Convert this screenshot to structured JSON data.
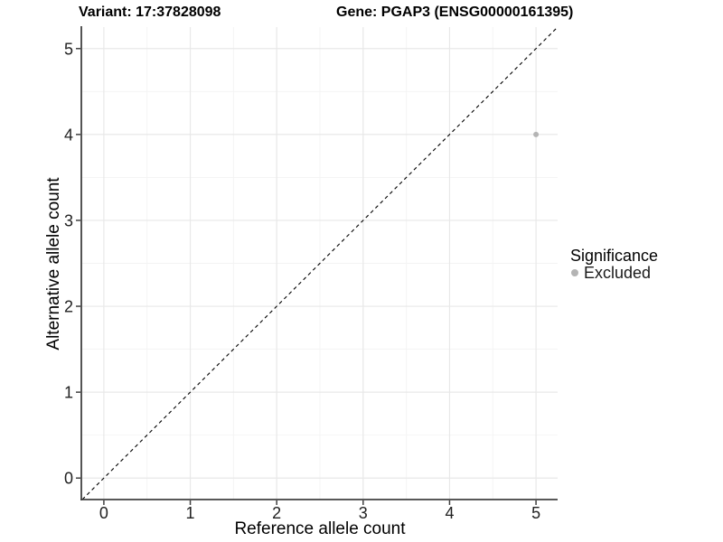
{
  "chart_data": {
    "type": "scatter",
    "title_left": "Variant: 17:37828098",
    "title_right": "Gene: PGAP3 (ENSG00000161395)",
    "xlabel": "Reference allele count",
    "ylabel": "Alternative allele count",
    "xlim": [
      -0.25,
      5.25
    ],
    "ylim": [
      -0.25,
      5.25
    ],
    "xticks": [
      0,
      1,
      2,
      3,
      4,
      5
    ],
    "yticks": [
      0,
      1,
      2,
      3,
      4,
      5
    ],
    "grid": {
      "major": true,
      "minor": true,
      "minor_step": 0.5
    },
    "reference_line": {
      "kind": "identity y=x",
      "slope": 1,
      "intercept": 0,
      "style": "dashed",
      "color": "#000000"
    },
    "series": [
      {
        "name": "Excluded",
        "marker": "circle",
        "color": "#b4b4b4",
        "points": [
          {
            "x": 5,
            "y": 4
          }
        ]
      }
    ],
    "legend": {
      "title": "Significance",
      "position": "right",
      "items": [
        {
          "label": "Excluded",
          "color": "#b4b4b4"
        }
      ]
    }
  },
  "style": {
    "background": "#ffffff",
    "grid_major_color": "#e8e8e8",
    "grid_minor_color": "#f3f3f3",
    "axis_line_color": "#404040",
    "tick_label_color": "#212121",
    "axis_title_color": "#000000",
    "plot_title_color": "#000000",
    "legend_text_color": "#1a1a1a",
    "point_color": "#b4b4b4"
  }
}
